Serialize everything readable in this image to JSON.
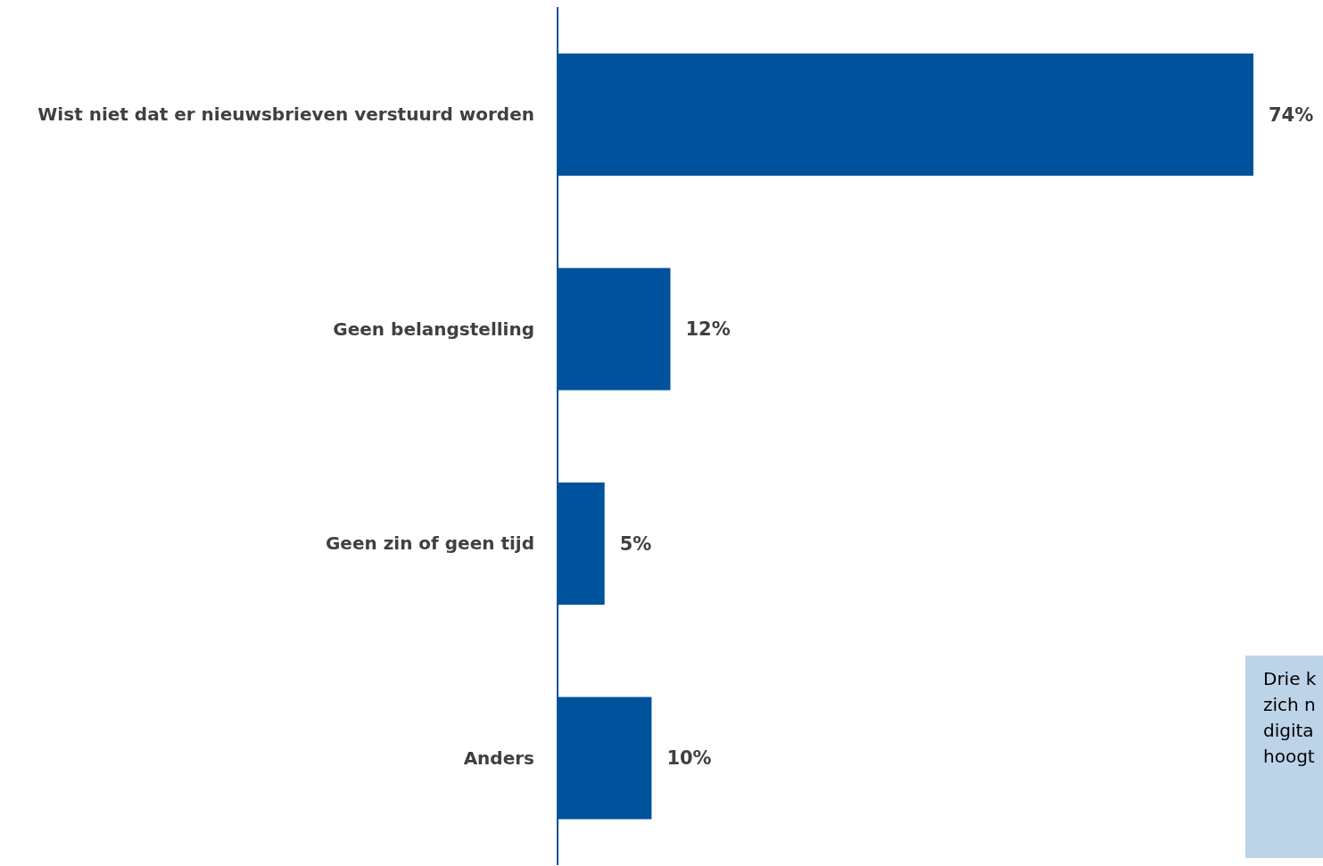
{
  "chart_data": {
    "type": "bar",
    "orientation": "horizontal",
    "categories": [
      "Wist niet dat er nieuwsbrieven verstuurd worden",
      "Geen belangstelling",
      "Geen zin of geen tijd",
      "Anders"
    ],
    "values": [
      74,
      12,
      5,
      10
    ],
    "value_labels": [
      "74%",
      "12%",
      "5%",
      "10%"
    ],
    "color": "#00529c",
    "grid": false,
    "annotations": [
      "Drie k\nzich n\ndigita\nhoogt"
    ]
  }
}
